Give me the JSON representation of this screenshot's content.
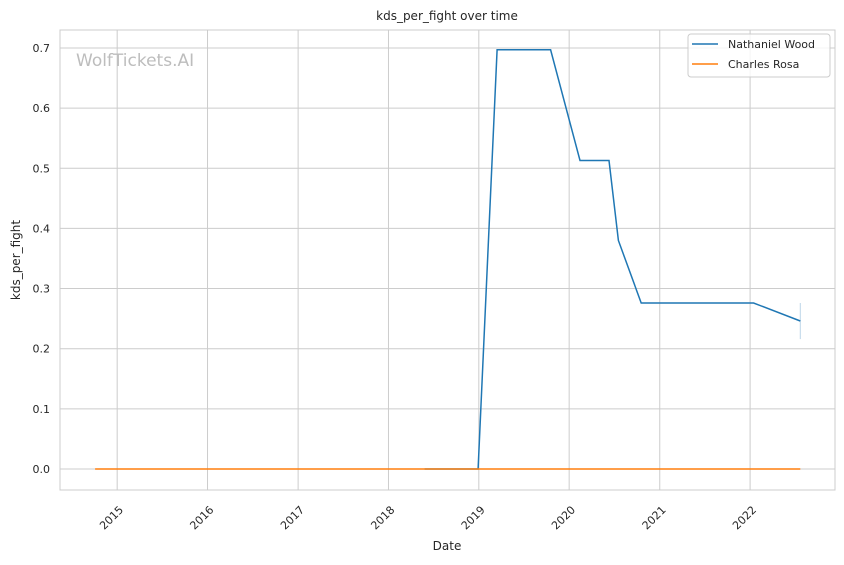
{
  "chart_data": {
    "type": "line",
    "title": "kds_per_fight over time",
    "xlabel": "Date",
    "ylabel": "kds_per_fight",
    "watermark": "WolfTickets.AI",
    "xlim": [
      "2014-05-15",
      "2022-12-10"
    ],
    "ylim": [
      -0.035,
      0.73
    ],
    "x_ticks": [
      "2015",
      "2016",
      "2017",
      "2018",
      "2019",
      "2020",
      "2021",
      "2022"
    ],
    "y_ticks": [
      "0.0",
      "0.1",
      "0.2",
      "0.3",
      "0.4",
      "0.5",
      "0.6",
      "0.7"
    ],
    "grid": true,
    "legend_position": "top-right",
    "series": [
      {
        "name": "Nathaniel Wood",
        "color": "#1f77b4",
        "x": [
          "2018-05-27",
          "2018-12-29",
          "2019-03-16",
          "2019-10-18",
          "2020-02-14",
          "2020-06-10",
          "2020-07-18",
          "2020-10-18",
          "2022-01-15",
          "2022-07-23"
        ],
        "y": [
          0.0,
          0.0,
          0.697,
          0.697,
          0.513,
          0.513,
          0.38,
          0.276,
          0.276,
          0.246
        ],
        "last_point_band": [
          0.216,
          0.276
        ]
      },
      {
        "name": "Charles Rosa",
        "color": "#ff7f0e",
        "x": [
          "2014-10-04",
          "2022-07-23"
        ],
        "y": [
          0.0,
          0.0
        ]
      }
    ]
  }
}
